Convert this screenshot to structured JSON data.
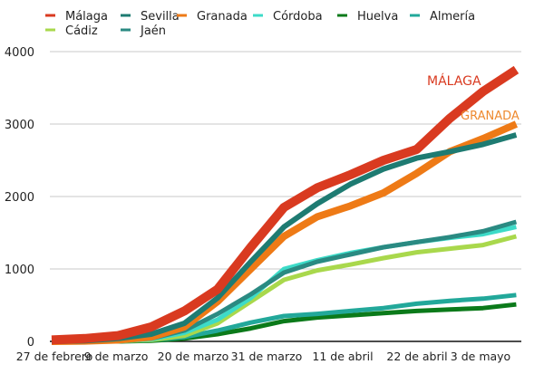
{
  "chart_data": {
    "type": "line",
    "title": "",
    "xlabel": "",
    "ylabel": "",
    "ylim": [
      0,
      4000
    ],
    "yticks": [
      0,
      1000,
      2000,
      3000,
      4000
    ],
    "grid": true,
    "legend": "top",
    "x_tick_labels": [
      "27 de febrero",
      "9 de marzo",
      "20 de marzo",
      "31 de marzo",
      "11 de abril",
      "22 de abril",
      "3 de mayo"
    ],
    "x": [
      "2020-02-27",
      "2020-03-03",
      "2020-03-08",
      "2020-03-13",
      "2020-03-18",
      "2020-03-23",
      "2020-03-28",
      "2020-04-02",
      "2020-04-07",
      "2020-04-12",
      "2020-04-17",
      "2020-04-22",
      "2020-04-27",
      "2020-05-02",
      "2020-05-07"
    ],
    "series": [
      {
        "name": "Málaga",
        "color": "#d93a20",
        "values": [
          20,
          40,
          80,
          200,
          420,
          720,
          1300,
          1850,
          2120,
          2300,
          2500,
          2650,
          3080,
          3450,
          3750
        ]
      },
      {
        "name": "Sevilla",
        "color": "#1e7b72",
        "values": [
          0,
          10,
          40,
          100,
          250,
          600,
          1100,
          1580,
          1900,
          2170,
          2380,
          2530,
          2620,
          2720,
          2850
        ]
      },
      {
        "name": "Granada",
        "color": "#ee7a16",
        "values": [
          0,
          5,
          20,
          60,
          200,
          550,
          1000,
          1450,
          1720,
          1870,
          2050,
          2320,
          2620,
          2800,
          3000
        ]
      },
      {
        "name": "Córdoba",
        "color": "#3ddbc8",
        "values": [
          0,
          0,
          5,
          30,
          120,
          300,
          600,
          1000,
          1120,
          1220,
          1300,
          1370,
          1430,
          1480,
          1580
        ]
      },
      {
        "name": "Huelva",
        "color": "#0b7a1a",
        "values": [
          0,
          0,
          0,
          10,
          40,
          100,
          180,
          280,
          330,
          360,
          390,
          420,
          440,
          460,
          510
        ]
      },
      {
        "name": "Almería",
        "color": "#22a89a",
        "values": [
          0,
          0,
          5,
          20,
          60,
          150,
          260,
          350,
          380,
          420,
          460,
          520,
          560,
          590,
          640
        ]
      },
      {
        "name": "Cádiz",
        "color": "#a9d84c",
        "values": [
          0,
          0,
          5,
          20,
          80,
          250,
          550,
          850,
          980,
          1060,
          1150,
          1230,
          1280,
          1330,
          1450
        ]
      },
      {
        "name": "Jaén",
        "color": "#2a8a82",
        "values": [
          0,
          0,
          5,
          40,
          150,
          380,
          650,
          950,
          1100,
          1200,
          1300,
          1370,
          1440,
          1520,
          1650
        ]
      }
    ],
    "annotations": [
      {
        "text": "MÁLAGA",
        "color": "#d93a20"
      },
      {
        "text": "GRANADA",
        "color": "#ee8a30"
      }
    ]
  }
}
